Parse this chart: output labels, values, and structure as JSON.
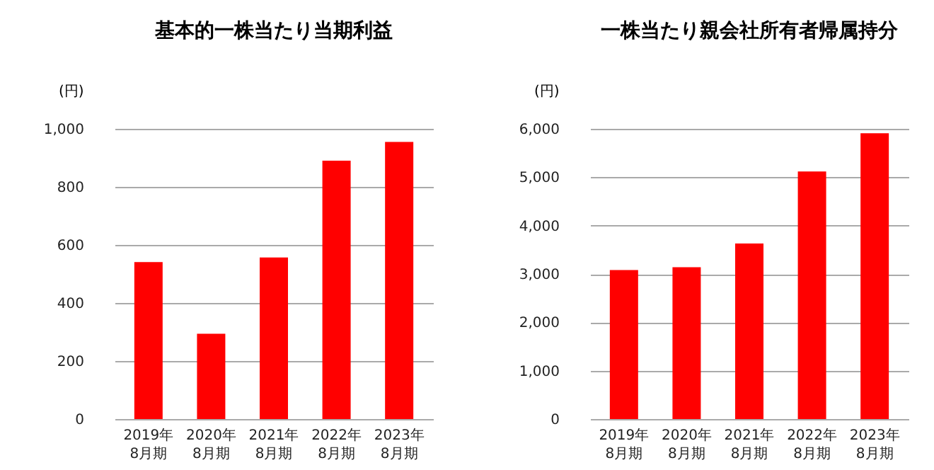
{
  "chart_data": [
    {
      "type": "bar",
      "title": "基本的一株当たり当期利益",
      "ylabel": "(円)",
      "categories": [
        "2019年\n8月期",
        "2020年\n8月期",
        "2021年\n8月期",
        "2022年\n8月期",
        "2023年\n8月期"
      ],
      "values": [
        541,
        294,
        557,
        890,
        955
      ],
      "color": "#ff0000",
      "ylim": [
        0,
        1000
      ],
      "yticks": [
        {
          "value": 0,
          "label": "0"
        },
        {
          "value": 200,
          "label": "200"
        },
        {
          "value": 400,
          "label": "400"
        },
        {
          "value": 600,
          "label": "600"
        },
        {
          "value": 800,
          "label": "800"
        },
        {
          "value": 1000,
          "label": "1,000"
        }
      ],
      "grid": "y"
    },
    {
      "type": "bar",
      "title": "一株当たり親会社所有者帰属持分",
      "ylabel": "(円)",
      "categories": [
        "2019年\n8月期",
        "2020年\n8月期",
        "2021年\n8月期",
        "2022年\n8月期",
        "2023年\n8月期"
      ],
      "values": [
        3080,
        3140,
        3630,
        5120,
        5910
      ],
      "color": "#ff0000",
      "ylim": [
        0,
        6000
      ],
      "yticks": [
        {
          "value": 0,
          "label": "0"
        },
        {
          "value": 1000,
          "label": "1,000"
        },
        {
          "value": 2000,
          "label": "2,000"
        },
        {
          "value": 3000,
          "label": "3,000"
        },
        {
          "value": 4000,
          "label": "4,000"
        },
        {
          "value": 5000,
          "label": "5,000"
        },
        {
          "value": 6000,
          "label": "6,000"
        }
      ],
      "grid": "y"
    }
  ]
}
